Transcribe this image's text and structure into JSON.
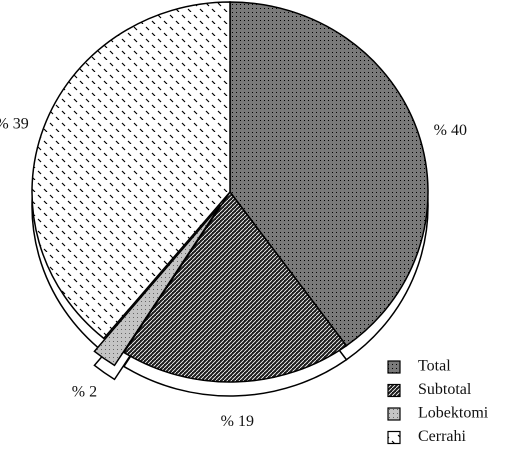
{
  "chart_data": {
    "type": "pie",
    "categories": [
      "Total",
      "Subtotal",
      "Lobektomi",
      "Cerrahi"
    ],
    "values": [
      40,
      19,
      2,
      39
    ],
    "value_labels": [
      "% 40",
      "% 19",
      "% 2",
      "% 39"
    ],
    "colors": [
      "#7a7a7a",
      "#1e1e1e",
      "#c4c4c4",
      "#ffffff"
    ],
    "legend": "bottom-right"
  }
}
